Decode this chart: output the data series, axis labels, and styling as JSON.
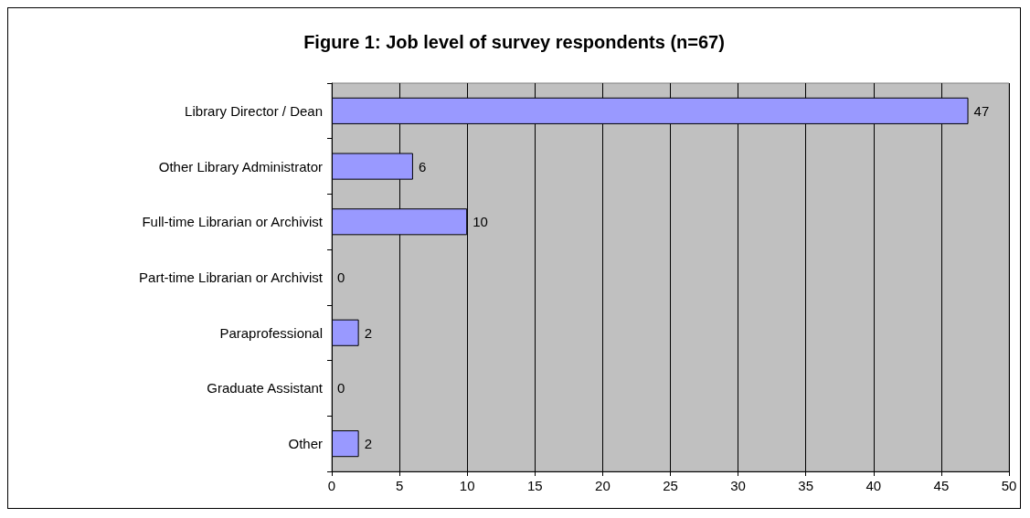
{
  "chart_data": {
    "type": "bar",
    "orientation": "horizontal",
    "title": "Figure 1: Job level of survey respondents (n=67)",
    "categories": [
      "Library Director / Dean",
      "Other Library Administrator",
      "Full-time Librarian or Archivist",
      "Part-time Librarian or Archivist",
      "Paraprofessional",
      "Graduate Assistant",
      "Other"
    ],
    "values": [
      47,
      6,
      10,
      0,
      2,
      0,
      2
    ],
    "color": "#9999ff",
    "xlim": [
      0,
      50
    ],
    "xticks": [
      0,
      5,
      10,
      15,
      20,
      25,
      30,
      35,
      40,
      45,
      50
    ],
    "grid": "x",
    "data_labels": true
  }
}
